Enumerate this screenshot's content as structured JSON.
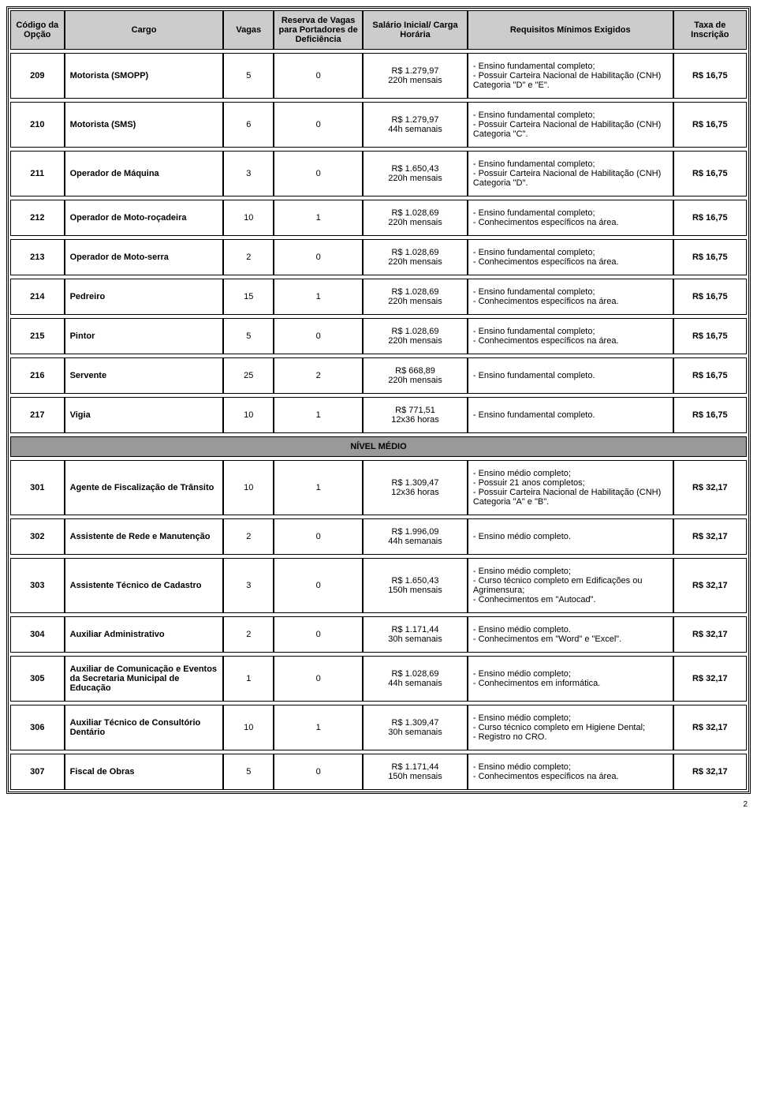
{
  "page_number": "2",
  "headers": {
    "codigo": "Código da Opção",
    "cargo": "Cargo",
    "vagas": "Vagas",
    "reserva": "Reserva de Vagas para Portadores de Deficiência",
    "salario": "Salário Inicial/ Carga Horária",
    "requisitos": "Requisitos Mínimos Exigidos",
    "taxa": "Taxa de Inscrição"
  },
  "section_label": "NÍVEL MÉDIO",
  "colors": {
    "header_bg": "#cccccc",
    "section_bg": "#999999",
    "border": "#000000",
    "text": "#000000"
  },
  "rows": [
    {
      "codigo": "209",
      "cargo": "Motorista (SMOPP)",
      "vagas": "5",
      "reserva": "0",
      "sal1": "R$ 1.279,97",
      "sal2": "220h mensais",
      "req": "- Ensino fundamental completo;\n- Possuir Carteira Nacional de Habilitação (CNH) Categoria \"D\" e \"E\".",
      "taxa": "R$ 16,75"
    },
    {
      "codigo": "210",
      "cargo": "Motorista (SMS)",
      "vagas": "6",
      "reserva": "0",
      "sal1": "R$ 1.279,97",
      "sal2": "44h semanais",
      "req": "- Ensino fundamental completo;\n- Possuir Carteira Nacional de Habilitação (CNH) Categoria \"C\".",
      "taxa": "R$ 16,75"
    },
    {
      "codigo": "211",
      "cargo": "Operador de Máquina",
      "vagas": "3",
      "reserva": "0",
      "sal1": "R$ 1.650,43",
      "sal2": "220h mensais",
      "req": "- Ensino fundamental completo;\n- Possuir Carteira Nacional de Habilitação (CNH) Categoria \"D\".",
      "taxa": "R$ 16,75"
    },
    {
      "codigo": "212",
      "cargo": "Operador de Moto-roçadeira",
      "vagas": "10",
      "reserva": "1",
      "sal1": "R$ 1.028,69",
      "sal2": "220h mensais",
      "req": "- Ensino fundamental completo;\n- Conhecimentos específicos na área.",
      "taxa": "R$ 16,75"
    },
    {
      "codigo": "213",
      "cargo": "Operador de Moto-serra",
      "vagas": "2",
      "reserva": "0",
      "sal1": "R$ 1.028,69",
      "sal2": "220h mensais",
      "req": "- Ensino fundamental completo;\n- Conhecimentos específicos na área.",
      "taxa": "R$ 16,75"
    },
    {
      "codigo": "214",
      "cargo": "Pedreiro",
      "vagas": "15",
      "reserva": "1",
      "sal1": "R$ 1.028,69",
      "sal2": "220h mensais",
      "req": "- Ensino fundamental completo;\n- Conhecimentos específicos na área.",
      "taxa": "R$ 16,75"
    },
    {
      "codigo": "215",
      "cargo": "Pintor",
      "vagas": "5",
      "reserva": "0",
      "sal1": "R$ 1.028,69",
      "sal2": "220h mensais",
      "req": "- Ensino fundamental completo;\n- Conhecimentos específicos na área.",
      "taxa": "R$ 16,75"
    },
    {
      "codigo": "216",
      "cargo": "Servente",
      "vagas": "25",
      "reserva": "2",
      "sal1": "R$ 668,89",
      "sal2": "220h mensais",
      "req": "- Ensino fundamental completo.",
      "taxa": "R$ 16,75"
    },
    {
      "codigo": "217",
      "cargo": "Vigia",
      "vagas": "10",
      "reserva": "1",
      "sal1": "R$ 771,51",
      "sal2": "12x36 horas",
      "req": "- Ensino fundamental completo.",
      "taxa": "R$ 16,75"
    }
  ],
  "rows2": [
    {
      "codigo": "301",
      "cargo": "Agente de Fiscalização de Trânsito",
      "vagas": "10",
      "reserva": "1",
      "sal1": "R$ 1.309,47",
      "sal2": "12x36 horas",
      "req": "- Ensino médio completo;\n- Possuir 21 anos completos;\n- Possuir Carteira Nacional de Habilitação (CNH) Categoria \"A\" e \"B\".",
      "taxa": "R$ 32,17"
    },
    {
      "codigo": "302",
      "cargo": "Assistente de Rede e Manutenção",
      "vagas": "2",
      "reserva": "0",
      "sal1": "R$ 1.996,09",
      "sal2": "44h semanais",
      "req": "- Ensino médio completo.",
      "taxa": "R$ 32,17"
    },
    {
      "codigo": "303",
      "cargo": "Assistente Técnico de Cadastro",
      "vagas": "3",
      "reserva": "0",
      "sal1": "R$ 1.650,43",
      "sal2": "150h mensais",
      "req": "- Ensino médio completo;\n- Curso técnico completo em Edificações ou Agrimensura;\n- Conhecimentos em \"Autocad\".",
      "taxa": "R$ 32,17"
    },
    {
      "codigo": "304",
      "cargo": "Auxiliar Administrativo",
      "vagas": "2",
      "reserva": "0",
      "sal1": "R$ 1.171,44",
      "sal2": "30h semanais",
      "req": "- Ensino médio completo.\n- Conhecimentos em \"Word\" e \"Excel\".",
      "taxa": "R$ 32,17"
    },
    {
      "codigo": "305",
      "cargo": "Auxiliar de Comunicação e Eventos da Secretaria Municipal de Educação",
      "vagas": "1",
      "reserva": "0",
      "sal1": "R$ 1.028,69",
      "sal2": "44h semanais",
      "req": "- Ensino médio completo;\n- Conhecimentos em informática.",
      "taxa": "R$ 32,17"
    },
    {
      "codigo": "306",
      "cargo": "Auxiliar Técnico de Consultório Dentário",
      "vagas": "10",
      "reserva": "1",
      "sal1": "R$ 1.309,47",
      "sal2": "30h semanais",
      "req": "- Ensino médio completo;\n- Curso técnico completo em Higiene Dental;\n- Registro no CRO.",
      "taxa": "R$ 32,17"
    },
    {
      "codigo": "307",
      "cargo": "Fiscal de Obras",
      "vagas": "5",
      "reserva": "0",
      "sal1": "R$ 1.171,44",
      "sal2": "150h mensais",
      "req": "- Ensino médio completo;\n- Conhecimentos específicos na área.",
      "taxa": "R$ 32,17"
    }
  ]
}
